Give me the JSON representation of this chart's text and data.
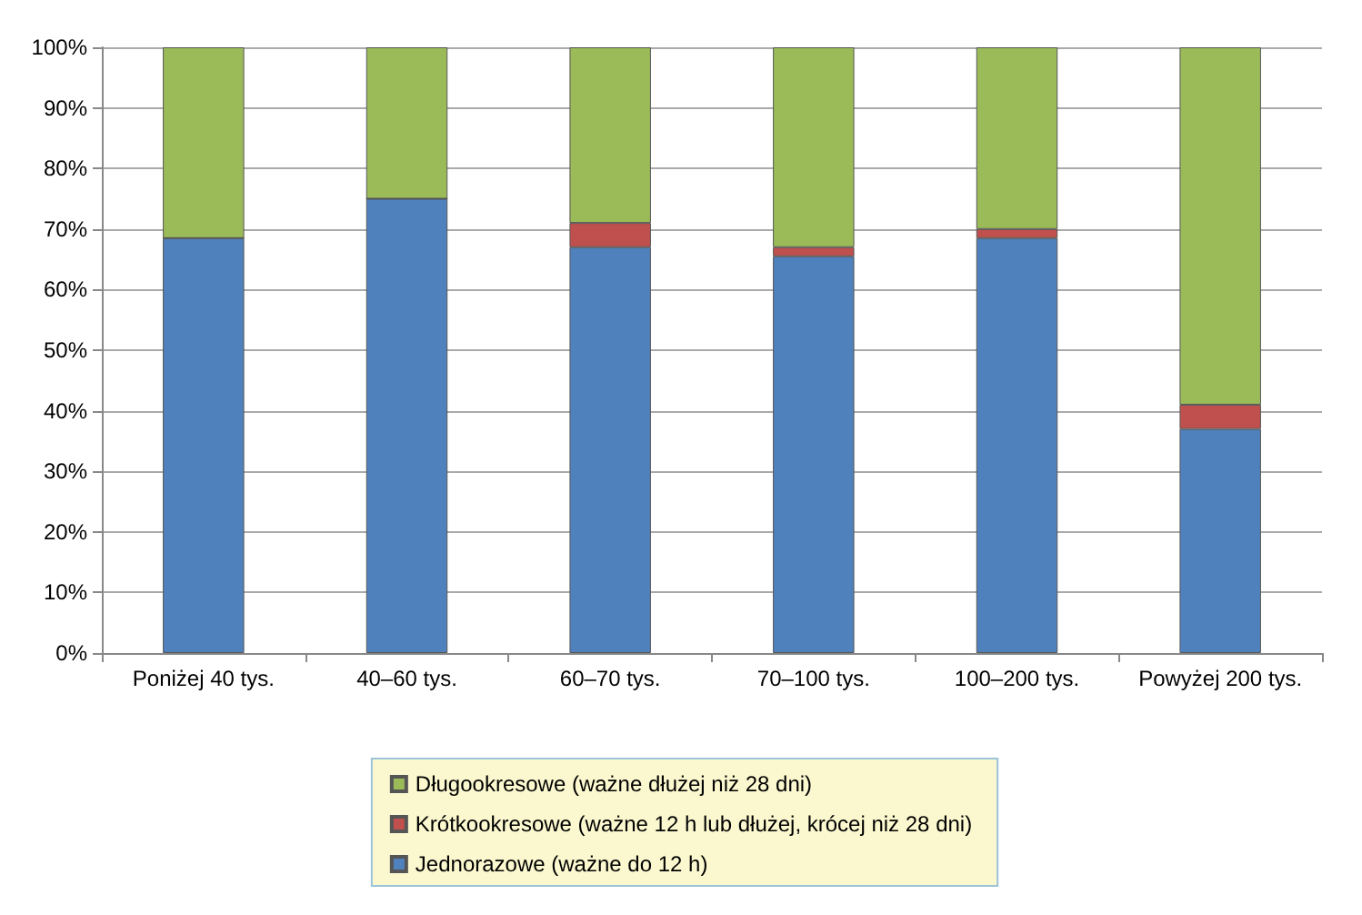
{
  "chart_data": {
    "type": "bar",
    "stacked": true,
    "categories": [
      "Poniżej 40 tys.",
      "40–60 tys.",
      "60–70 tys.",
      "70–100 tys.",
      "100–200 tys.",
      "Powyżej 200 tys."
    ],
    "series": [
      {
        "name": "Jednorazowe (ważne do 12 h)",
        "color": "#4f81bd",
        "values": [
          68.5,
          75,
          67,
          65.5,
          68.5,
          37
        ]
      },
      {
        "name": "Krótkookresowe (ważne 12 h lub dłużej, krócej niż 28 dni)",
        "color": "#c0504d",
        "values": [
          0,
          0,
          4,
          1.5,
          1.5,
          4
        ]
      },
      {
        "name": "Długookresowe (ważne dłużej niż 28 dni)",
        "color": "#9bbb59",
        "values": [
          31.5,
          25,
          29,
          33,
          30,
          59
        ]
      }
    ],
    "ylim": [
      0,
      100
    ],
    "yticks": [
      {
        "value": 0,
        "label": "0%"
      },
      {
        "value": 10,
        "label": "10%"
      },
      {
        "value": 20,
        "label": "20%"
      },
      {
        "value": 30,
        "label": "30%"
      },
      {
        "value": 40,
        "label": "40%"
      },
      {
        "value": 50,
        "label": "50%"
      },
      {
        "value": 60,
        "label": "60%"
      },
      {
        "value": 70,
        "label": "70%"
      },
      {
        "value": 80,
        "label": "80%"
      },
      {
        "value": 90,
        "label": "90%"
      },
      {
        "value": 100,
        "label": "100%"
      }
    ],
    "grid": "y",
    "legend": "bottom"
  }
}
